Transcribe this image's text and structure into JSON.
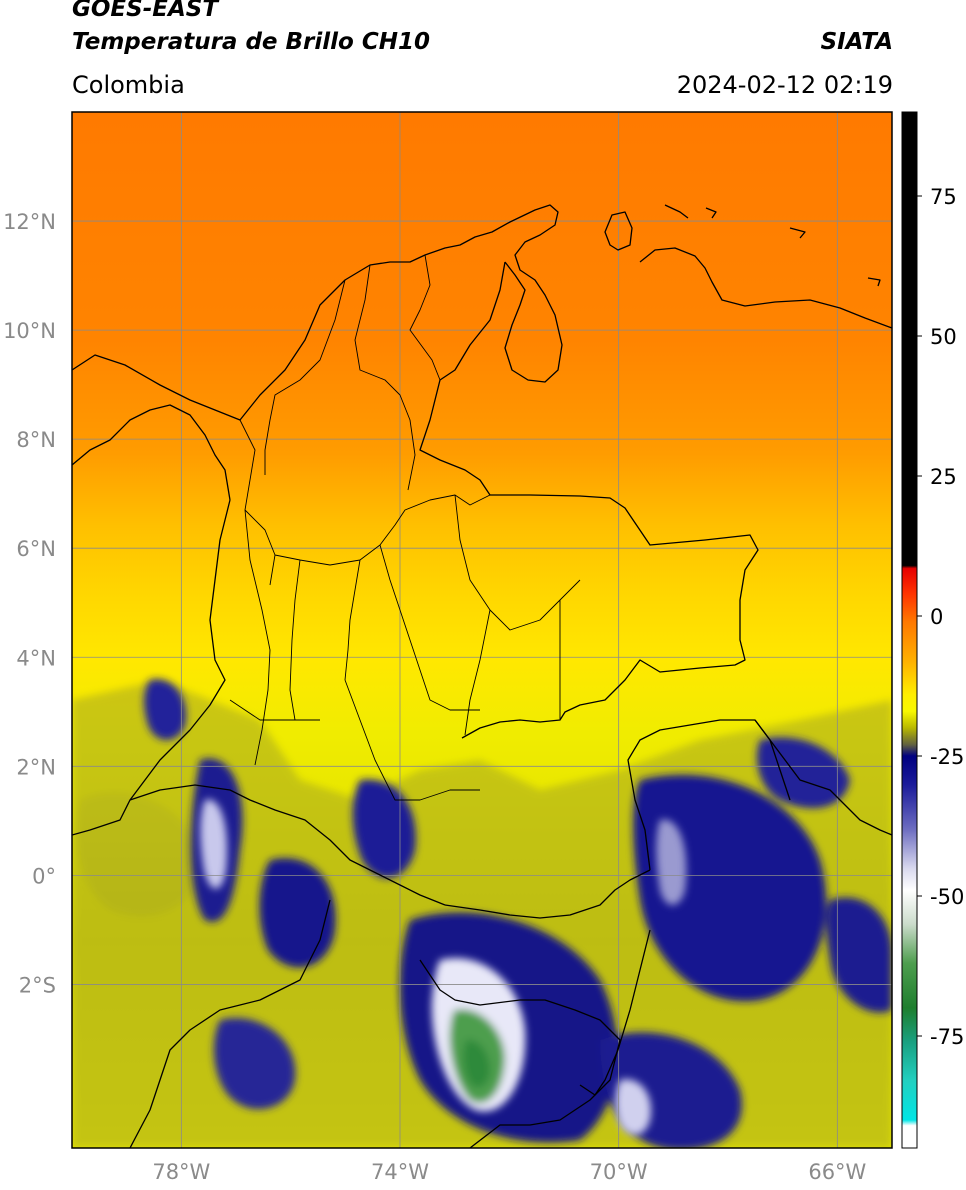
{
  "header": {
    "satellite": "GOES-EAST",
    "product": "Temperatura de Brillo CH10",
    "region": "Colombia",
    "organization": "SIATA",
    "datetime": "2024-02-12 02:19"
  },
  "map": {
    "lon_range": [
      -80,
      -65
    ],
    "lat_range": [
      -5,
      14
    ],
    "lat_ticks": [
      {
        "value": 12,
        "label": "12°N"
      },
      {
        "value": 10,
        "label": "10°N"
      },
      {
        "value": 8,
        "label": "8°N"
      },
      {
        "value": 6,
        "label": "6°N"
      },
      {
        "value": 4,
        "label": "4°N"
      },
      {
        "value": 2,
        "label": "2°N"
      },
      {
        "value": 0,
        "label": "0°"
      },
      {
        "value": -2,
        "label": "2°S"
      }
    ],
    "lon_ticks": [
      {
        "value": -78,
        "label": "78°W"
      },
      {
        "value": -74,
        "label": "74°W"
      },
      {
        "value": -70,
        "label": "70°W"
      },
      {
        "value": -66,
        "label": "66°W"
      }
    ],
    "gridlines": true
  },
  "colorbar": {
    "range": [
      -95,
      90
    ],
    "ticks": [
      {
        "value": 75,
        "label": "75"
      },
      {
        "value": 50,
        "label": "50"
      },
      {
        "value": 25,
        "label": "25"
      },
      {
        "value": 0,
        "label": "0"
      },
      {
        "value": -25,
        "label": "-25"
      },
      {
        "value": -50,
        "label": "-50"
      },
      {
        "value": -75,
        "label": "-75"
      }
    ],
    "stops": [
      {
        "value": 90,
        "color": "#000000"
      },
      {
        "value": 9,
        "color": "#000000"
      },
      {
        "value": 8.5,
        "color": "#e60000"
      },
      {
        "value": 4,
        "color": "#ff3300"
      },
      {
        "value": -1,
        "color": "#ff7800"
      },
      {
        "value": -8,
        "color": "#ffb000"
      },
      {
        "value": -14,
        "color": "#ffee00"
      },
      {
        "value": -17,
        "color": "#f8f800"
      },
      {
        "value": -20,
        "color": "#b8b800"
      },
      {
        "value": -23,
        "color": "#606040"
      },
      {
        "value": -25,
        "color": "#000080"
      },
      {
        "value": -30,
        "color": "#1a1a9a"
      },
      {
        "value": -38,
        "color": "#6c6cc0"
      },
      {
        "value": -45,
        "color": "#d8d8ee"
      },
      {
        "value": -49,
        "color": "#ffffff"
      },
      {
        "value": -55,
        "color": "#ccdccc"
      },
      {
        "value": -62,
        "color": "#4e9e4e"
      },
      {
        "value": -70,
        "color": "#1e7e2e"
      },
      {
        "value": -76,
        "color": "#1aa080"
      },
      {
        "value": -83,
        "color": "#22d0c0"
      },
      {
        "value": -90,
        "color": "#00e5e5"
      },
      {
        "value": -91,
        "color": "#ffffff"
      },
      {
        "value": -95,
        "color": "#ffffff"
      }
    ]
  }
}
